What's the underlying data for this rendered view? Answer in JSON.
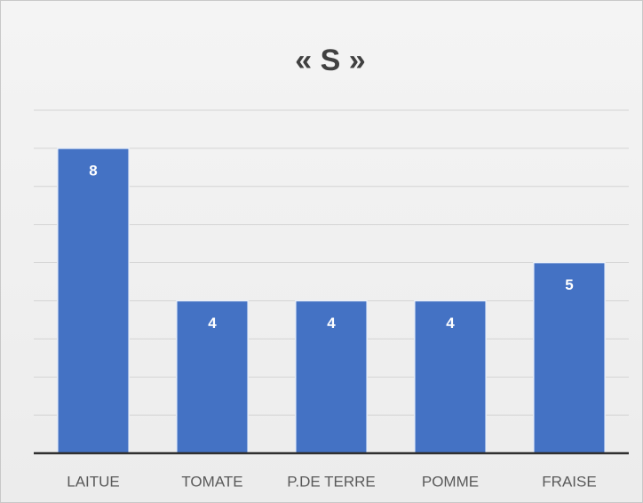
{
  "chart_data": {
    "type": "bar",
    "title": "« S »",
    "categories": [
      "LAITUE",
      "TOMATE",
      "P.DE TERRE",
      "POMME",
      "FRAISE"
    ],
    "values": [
      8,
      4,
      4,
      4,
      5
    ],
    "color": "#4472c4",
    "ylim": [
      0,
      9
    ],
    "yticks": [
      0,
      1,
      2,
      3,
      4,
      5,
      6,
      7,
      8,
      9
    ],
    "grid": true
  }
}
